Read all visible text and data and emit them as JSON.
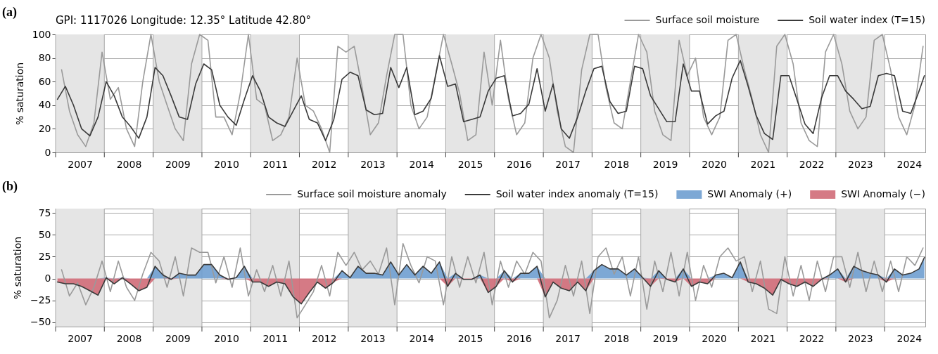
{
  "chart_data": [
    {
      "type": "line",
      "title": "GPI: 1117026 Longitude: 12.35° Latitude 42.80°",
      "ylabel": "% saturation",
      "annotations": [
        "(a)"
      ],
      "x": [
        "2007-01-15",
        "2007-03-15",
        "2007-05-15",
        "2007-07-15",
        "2007-09-15",
        "2007-11-15",
        "2008-01-15",
        "2008-03-15",
        "2008-05-15",
        "2008-07-15",
        "2008-09-15",
        "2008-11-15",
        "2009-01-15",
        "2009-03-15",
        "2009-05-15",
        "2009-07-15",
        "2009-09-15",
        "2009-11-15",
        "2010-01-15",
        "2010-03-15",
        "2010-05-15",
        "2010-07-15",
        "2010-09-15",
        "2010-11-15",
        "2011-01-15",
        "2011-03-15",
        "2011-05-15",
        "2011-07-15",
        "2011-09-15",
        "2011-11-15",
        "2012-01-15",
        "2012-03-15",
        "2012-05-15",
        "2012-07-15",
        "2012-09-15",
        "2012-11-15",
        "2013-01-15",
        "2013-03-15",
        "2013-05-15",
        "2013-07-15",
        "2013-09-15",
        "2013-11-15",
        "2014-01-15",
        "2014-03-15",
        "2014-05-15",
        "2014-07-15",
        "2014-09-15",
        "2014-11-15",
        "2015-01-15",
        "2015-03-15",
        "2015-05-15",
        "2015-07-15",
        "2015-09-15",
        "2015-11-15",
        "2016-01-15",
        "2016-03-15",
        "2016-05-15",
        "2016-07-15",
        "2016-09-15",
        "2016-11-15",
        "2017-01-15",
        "2017-03-15",
        "2017-05-15",
        "2017-07-15",
        "2017-09-15",
        "2017-11-15",
        "2018-01-15",
        "2018-03-15",
        "2018-05-15",
        "2018-07-15",
        "2018-09-15",
        "2018-11-15",
        "2019-01-15",
        "2019-03-15",
        "2019-05-15",
        "2019-07-15",
        "2019-09-15",
        "2019-11-15",
        "2020-01-15",
        "2020-03-15",
        "2020-05-15",
        "2020-07-15",
        "2020-09-15",
        "2020-11-15",
        "2021-01-15",
        "2021-03-15",
        "2021-05-15",
        "2021-07-15",
        "2021-09-15",
        "2021-11-15",
        "2022-01-15",
        "2022-03-15",
        "2022-05-15",
        "2022-07-15",
        "2022-09-15",
        "2022-11-15",
        "2023-01-15",
        "2023-03-15",
        "2023-05-15",
        "2023-07-15",
        "2023-09-15",
        "2023-11-15",
        "2024-01-15",
        "2024-03-15",
        "2024-05-15",
        "2024-07-15",
        "2024-09-15",
        "2024-10-25"
      ],
      "xlim": [
        "2007-01-01",
        "2024-11-01"
      ],
      "ylim": [
        0,
        100
      ],
      "xticks": [
        {
          "value": "2007-01-01",
          "label": null
        },
        {
          "value": "2007-07-02",
          "label": "2007"
        },
        {
          "value": "2008-01-01",
          "label": null
        },
        {
          "value": "2008-07-02",
          "label": "2008"
        },
        {
          "value": "2009-01-01",
          "label": null
        },
        {
          "value": "2009-07-02",
          "label": "2009"
        },
        {
          "value": "2010-01-01",
          "label": null
        },
        {
          "value": "2010-07-02",
          "label": "2010"
        },
        {
          "value": "2011-01-01",
          "label": null
        },
        {
          "value": "2011-07-02",
          "label": "2011"
        },
        {
          "value": "2012-01-01",
          "label": null
        },
        {
          "value": "2012-07-02",
          "label": "2012"
        },
        {
          "value": "2013-01-01",
          "label": null
        },
        {
          "value": "2013-07-02",
          "label": "2013"
        },
        {
          "value": "2014-01-01",
          "label": null
        },
        {
          "value": "2014-07-02",
          "label": "2014"
        },
        {
          "value": "2015-01-01",
          "label": null
        },
        {
          "value": "2015-07-02",
          "label": "2015"
        },
        {
          "value": "2016-01-01",
          "label": null
        },
        {
          "value": "2016-07-02",
          "label": "2016"
        },
        {
          "value": "2017-01-01",
          "label": null
        },
        {
          "value": "2017-07-02",
          "label": "2017"
        },
        {
          "value": "2018-01-01",
          "label": null
        },
        {
          "value": "2018-07-02",
          "label": "2018"
        },
        {
          "value": "2019-01-01",
          "label": null
        },
        {
          "value": "2019-07-02",
          "label": "2019"
        },
        {
          "value": "2020-01-01",
          "label": null
        },
        {
          "value": "2020-07-02",
          "label": "2020"
        },
        {
          "value": "2021-01-01",
          "label": null
        },
        {
          "value": "2021-07-02",
          "label": "2021"
        },
        {
          "value": "2022-01-01",
          "label": null
        },
        {
          "value": "2022-07-02",
          "label": "2022"
        },
        {
          "value": "2023-01-01",
          "label": null
        },
        {
          "value": "2023-07-02",
          "label": "2023"
        },
        {
          "value": "2024-01-01",
          "label": null
        },
        {
          "value": "2024-07-02",
          "label": "2024"
        }
      ],
      "yticks": [
        0,
        20,
        40,
        60,
        80,
        100
      ],
      "grid": true,
      "legend": "top right",
      "bands": [
        {
          "axis": "x",
          "from": "2007-01-01",
          "to": "2008-01-01",
          "color": "#e5e5e5"
        },
        {
          "axis": "x",
          "from": "2009-01-01",
          "to": "2010-01-01",
          "color": "#e5e5e5"
        },
        {
          "axis": "x",
          "from": "2011-01-01",
          "to": "2012-01-01",
          "color": "#e5e5e5"
        },
        {
          "axis": "x",
          "from": "2013-01-01",
          "to": "2014-01-01",
          "color": "#e5e5e5"
        },
        {
          "axis": "x",
          "from": "2015-01-01",
          "to": "2016-01-01",
          "color": "#e5e5e5"
        },
        {
          "axis": "x",
          "from": "2017-01-01",
          "to": "2018-01-01",
          "color": "#e5e5e5"
        },
        {
          "axis": "x",
          "from": "2019-01-01",
          "to": "2020-01-01",
          "color": "#e5e5e5"
        },
        {
          "axis": "x",
          "from": "2021-01-01",
          "to": "2022-01-01",
          "color": "#e5e5e5"
        },
        {
          "axis": "x",
          "from": "2023-01-01",
          "to": "2024-01-01",
          "color": "#e5e5e5"
        }
      ],
      "series": [
        {
          "name": "Surface soil moisture",
          "color": "#9a9a9a",
          "x": [
            "2007-02-15",
            "2007-04-15",
            "2007-06-15",
            "2007-08-15",
            "2007-10-15",
            "2007-12-15",
            "2008-02-15",
            "2008-04-15",
            "2008-06-15",
            "2008-08-15",
            "2008-10-15",
            "2008-12-15",
            "2009-02-15",
            "2009-04-15",
            "2009-06-15",
            "2009-08-15",
            "2009-10-15",
            "2009-12-15",
            "2010-02-15",
            "2010-04-15",
            "2010-06-15",
            "2010-08-15",
            "2010-10-15",
            "2010-12-15",
            "2011-02-15",
            "2011-04-15",
            "2011-06-15",
            "2011-08-15",
            "2011-10-15",
            "2011-12-15",
            "2012-02-15",
            "2012-04-15",
            "2012-06-15",
            "2012-08-15",
            "2012-10-15",
            "2012-12-15",
            "2013-02-15",
            "2013-04-15",
            "2013-06-15",
            "2013-08-15",
            "2013-10-15",
            "2013-12-15",
            "2014-02-15",
            "2014-04-15",
            "2014-06-15",
            "2014-08-15",
            "2014-10-15",
            "2014-12-15",
            "2015-02-15",
            "2015-04-15",
            "2015-06-15",
            "2015-08-15",
            "2015-10-15",
            "2015-12-15",
            "2016-02-15",
            "2016-04-15",
            "2016-06-15",
            "2016-08-15",
            "2016-10-15",
            "2016-12-15",
            "2017-02-15",
            "2017-04-15",
            "2017-06-15",
            "2017-08-15",
            "2017-10-15",
            "2017-12-15",
            "2018-02-15",
            "2018-04-15",
            "2018-06-15",
            "2018-08-15",
            "2018-10-15",
            "2018-12-15",
            "2019-02-15",
            "2019-04-15",
            "2019-06-15",
            "2019-08-15",
            "2019-10-15",
            "2019-12-15",
            "2020-02-15",
            "2020-04-15",
            "2020-06-15",
            "2020-08-15",
            "2020-10-15",
            "2020-12-15",
            "2021-02-15",
            "2021-04-15",
            "2021-06-15",
            "2021-08-15",
            "2021-10-15",
            "2021-12-15",
            "2022-02-15",
            "2022-04-15",
            "2022-06-15",
            "2022-08-15",
            "2022-10-15",
            "2022-12-15",
            "2023-02-15",
            "2023-04-15",
            "2023-06-15",
            "2023-08-15",
            "2023-10-15",
            "2023-12-15",
            "2024-02-15",
            "2024-04-15",
            "2024-06-15",
            "2024-08-15",
            "2024-10-15"
          ],
          "values": [
            70,
            35,
            15,
            5,
            25,
            85,
            45,
            55,
            20,
            5,
            60,
            100,
            60,
            40,
            20,
            10,
            75,
            100,
            95,
            30,
            30,
            15,
            50,
            100,
            45,
            40,
            10,
            15,
            30,
            80,
            40,
            35,
            20,
            0,
            90,
            85,
            90,
            55,
            15,
            25,
            65,
            100,
            100,
            40,
            20,
            30,
            65,
            100,
            75,
            50,
            10,
            15,
            85,
            40,
            95,
            45,
            15,
            25,
            80,
            100,
            80,
            35,
            5,
            0,
            70,
            100,
            100,
            55,
            25,
            20,
            60,
            100,
            85,
            35,
            15,
            10,
            95,
            65,
            80,
            30,
            15,
            30,
            95,
            100,
            70,
            45,
            15,
            0,
            90,
            100,
            75,
            25,
            10,
            5,
            85,
            100,
            75,
            35,
            20,
            30,
            95,
            100,
            70,
            30,
            15,
            40,
            90
          ]
        },
        {
          "name": "Soil water index (T=15)",
          "color": "#3a3a3a",
          "values": [
            45,
            56,
            40,
            20,
            14,
            30,
            60,
            48,
            30,
            22,
            12,
            30,
            72,
            65,
            48,
            30,
            28,
            58,
            75,
            70,
            40,
            30,
            23,
            45,
            65,
            52,
            30,
            25,
            22,
            35,
            48,
            28,
            25,
            10,
            28,
            62,
            68,
            65,
            36,
            32,
            33,
            72,
            55,
            72,
            32,
            35,
            46,
            82,
            56,
            58,
            26,
            28,
            30,
            52,
            63,
            65,
            31,
            33,
            41,
            71,
            35,
            58,
            20,
            12,
            30,
            52,
            71,
            73,
            43,
            33,
            35,
            73,
            71,
            48,
            37,
            26,
            26,
            75,
            52,
            52,
            24,
            31,
            35,
            63,
            78,
            56,
            31,
            16,
            11,
            65,
            65,
            45,
            24,
            16,
            46,
            65,
            65,
            52,
            45,
            37,
            39,
            65,
            67,
            65,
            35,
            33,
            52,
            65
          ]
        }
      ]
    },
    {
      "type": "line",
      "ylabel": "% saturation",
      "annotations": [
        "(b)"
      ],
      "x": [
        "2007-01-15",
        "2007-03-15",
        "2007-05-15",
        "2007-07-15",
        "2007-09-15",
        "2007-11-15",
        "2008-01-15",
        "2008-03-15",
        "2008-05-15",
        "2008-07-15",
        "2008-09-15",
        "2008-11-15",
        "2009-01-15",
        "2009-03-15",
        "2009-05-15",
        "2009-07-15",
        "2009-09-15",
        "2009-11-15",
        "2010-01-15",
        "2010-03-15",
        "2010-05-15",
        "2010-07-15",
        "2010-09-15",
        "2010-11-15",
        "2011-01-15",
        "2011-03-15",
        "2011-05-15",
        "2011-07-15",
        "2011-09-15",
        "2011-11-15",
        "2012-01-15",
        "2012-03-15",
        "2012-05-15",
        "2012-07-15",
        "2012-09-15",
        "2012-11-15",
        "2013-01-15",
        "2013-03-15",
        "2013-05-15",
        "2013-07-15",
        "2013-09-15",
        "2013-11-15",
        "2014-01-15",
        "2014-03-15",
        "2014-05-15",
        "2014-07-15",
        "2014-09-15",
        "2014-11-15",
        "2015-01-15",
        "2015-03-15",
        "2015-05-15",
        "2015-07-15",
        "2015-09-15",
        "2015-11-15",
        "2016-01-15",
        "2016-03-15",
        "2016-05-15",
        "2016-07-15",
        "2016-09-15",
        "2016-11-15",
        "2017-01-15",
        "2017-03-15",
        "2017-05-15",
        "2017-07-15",
        "2017-09-15",
        "2017-11-15",
        "2018-01-15",
        "2018-03-15",
        "2018-05-15",
        "2018-07-15",
        "2018-09-15",
        "2018-11-15",
        "2019-01-15",
        "2019-03-15",
        "2019-05-15",
        "2019-07-15",
        "2019-09-15",
        "2019-11-15",
        "2020-01-15",
        "2020-03-15",
        "2020-05-15",
        "2020-07-15",
        "2020-09-15",
        "2020-11-15",
        "2021-01-15",
        "2021-03-15",
        "2021-05-15",
        "2021-07-15",
        "2021-09-15",
        "2021-11-15",
        "2022-01-15",
        "2022-03-15",
        "2022-05-15",
        "2022-07-15",
        "2022-09-15",
        "2022-11-15",
        "2023-01-15",
        "2023-03-15",
        "2023-05-15",
        "2023-07-15",
        "2023-09-15",
        "2023-11-15",
        "2024-01-15",
        "2024-03-15",
        "2024-05-15",
        "2024-07-15",
        "2024-09-15",
        "2024-10-25"
      ],
      "xlim": [
        "2007-01-01",
        "2024-11-01"
      ],
      "ylim": [
        -55,
        80
      ],
      "xticks": [
        {
          "value": "2007-01-01",
          "label": null
        },
        {
          "value": "2007-07-02",
          "label": "2007"
        },
        {
          "value": "2008-01-01",
          "label": null
        },
        {
          "value": "2008-07-02",
          "label": "2008"
        },
        {
          "value": "2009-01-01",
          "label": null
        },
        {
          "value": "2009-07-02",
          "label": "2009"
        },
        {
          "value": "2010-01-01",
          "label": null
        },
        {
          "value": "2010-07-02",
          "label": "2010"
        },
        {
          "value": "2011-01-01",
          "label": null
        },
        {
          "value": "2011-07-02",
          "label": "2011"
        },
        {
          "value": "2012-01-01",
          "label": null
        },
        {
          "value": "2012-07-02",
          "label": "2012"
        },
        {
          "value": "2013-01-01",
          "label": null
        },
        {
          "value": "2013-07-02",
          "label": "2013"
        },
        {
          "value": "2014-01-01",
          "label": null
        },
        {
          "value": "2014-07-02",
          "label": "2014"
        },
        {
          "value": "2015-01-01",
          "label": null
        },
        {
          "value": "2015-07-02",
          "label": "2015"
        },
        {
          "value": "2016-01-01",
          "label": null
        },
        {
          "value": "2016-07-02",
          "label": "2016"
        },
        {
          "value": "2017-01-01",
          "label": null
        },
        {
          "value": "2017-07-02",
          "label": "2017"
        },
        {
          "value": "2018-01-01",
          "label": null
        },
        {
          "value": "2018-07-02",
          "label": "2018"
        },
        {
          "value": "2019-01-01",
          "label": null
        },
        {
          "value": "2019-07-02",
          "label": "2019"
        },
        {
          "value": "2020-01-01",
          "label": null
        },
        {
          "value": "2020-07-02",
          "label": "2020"
        },
        {
          "value": "2021-01-01",
          "label": null
        },
        {
          "value": "2021-07-02",
          "label": "2021"
        },
        {
          "value": "2022-01-01",
          "label": null
        },
        {
          "value": "2022-07-02",
          "label": "2022"
        },
        {
          "value": "2023-01-01",
          "label": null
        },
        {
          "value": "2023-07-02",
          "label": "2023"
        },
        {
          "value": "2024-01-01",
          "label": null
        },
        {
          "value": "2024-07-02",
          "label": "2024"
        }
      ],
      "yticks": [
        -50,
        -25,
        0,
        25,
        50,
        75
      ],
      "grid": true,
      "legend": "top right",
      "bands": [
        {
          "axis": "x",
          "from": "2007-01-01",
          "to": "2008-01-01",
          "color": "#e5e5e5"
        },
        {
          "axis": "x",
          "from": "2009-01-01",
          "to": "2010-01-01",
          "color": "#e5e5e5"
        },
        {
          "axis": "x",
          "from": "2011-01-01",
          "to": "2012-01-01",
          "color": "#e5e5e5"
        },
        {
          "axis": "x",
          "from": "2013-01-01",
          "to": "2014-01-01",
          "color": "#e5e5e5"
        },
        {
          "axis": "x",
          "from": "2015-01-01",
          "to": "2016-01-01",
          "color": "#e5e5e5"
        },
        {
          "axis": "x",
          "from": "2017-01-01",
          "to": "2018-01-01",
          "color": "#e5e5e5"
        },
        {
          "axis": "x",
          "from": "2019-01-01",
          "to": "2020-01-01",
          "color": "#e5e5e5"
        },
        {
          "axis": "x",
          "from": "2021-01-01",
          "to": "2022-01-01",
          "color": "#e5e5e5"
        },
        {
          "axis": "x",
          "from": "2023-01-01",
          "to": "2024-01-01",
          "color": "#e5e5e5"
        }
      ],
      "series": [
        {
          "name": "Surface soil moisture anomaly",
          "color": "#9a9a9a",
          "x": [
            "2007-02-15",
            "2007-04-15",
            "2007-06-15",
            "2007-08-15",
            "2007-10-15",
            "2007-12-15",
            "2008-02-15",
            "2008-04-15",
            "2008-06-15",
            "2008-08-15",
            "2008-10-15",
            "2008-12-15",
            "2009-02-15",
            "2009-04-15",
            "2009-06-15",
            "2009-08-15",
            "2009-10-15",
            "2009-12-15",
            "2010-02-15",
            "2010-04-15",
            "2010-06-15",
            "2010-08-15",
            "2010-10-15",
            "2010-12-15",
            "2011-02-15",
            "2011-04-15",
            "2011-06-15",
            "2011-08-15",
            "2011-10-15",
            "2011-12-15",
            "2012-02-15",
            "2012-04-15",
            "2012-06-15",
            "2012-08-15",
            "2012-10-15",
            "2012-12-15",
            "2013-02-15",
            "2013-04-15",
            "2013-06-15",
            "2013-08-15",
            "2013-10-15",
            "2013-12-15",
            "2014-02-15",
            "2014-04-15",
            "2014-06-15",
            "2014-08-15",
            "2014-10-15",
            "2014-12-15",
            "2015-02-15",
            "2015-04-15",
            "2015-06-15",
            "2015-08-15",
            "2015-10-15",
            "2015-12-15",
            "2016-02-15",
            "2016-04-15",
            "2016-06-15",
            "2016-08-15",
            "2016-10-15",
            "2016-12-15",
            "2017-02-15",
            "2017-04-15",
            "2017-06-15",
            "2017-08-15",
            "2017-10-15",
            "2017-12-15",
            "2018-02-15",
            "2018-04-15",
            "2018-06-15",
            "2018-08-15",
            "2018-10-15",
            "2018-12-15",
            "2019-02-15",
            "2019-04-15",
            "2019-06-15",
            "2019-08-15",
            "2019-10-15",
            "2019-12-15",
            "2020-02-15",
            "2020-04-15",
            "2020-06-15",
            "2020-08-15",
            "2020-10-15",
            "2020-12-15",
            "2021-02-15",
            "2021-04-15",
            "2021-06-15",
            "2021-08-15",
            "2021-10-15",
            "2021-12-15",
            "2022-02-15",
            "2022-04-15",
            "2022-06-15",
            "2022-08-15",
            "2022-10-15",
            "2022-12-15",
            "2023-02-15",
            "2023-04-15",
            "2023-06-15",
            "2023-08-15",
            "2023-10-15",
            "2023-12-15",
            "2024-02-15",
            "2024-04-15",
            "2024-06-15",
            "2024-08-15",
            "2024-10-15"
          ],
          "values": [
            10,
            -20,
            -5,
            -30,
            -10,
            20,
            -15,
            20,
            -10,
            -25,
            5,
            30,
            20,
            -10,
            25,
            -20,
            35,
            30,
            30,
            -5,
            25,
            -10,
            35,
            -20,
            10,
            -15,
            15,
            -20,
            20,
            -45,
            -30,
            -15,
            15,
            -20,
            30,
            15,
            30,
            10,
            20,
            5,
            35,
            -30,
            40,
            15,
            -5,
            25,
            20,
            -30,
            25,
            -10,
            25,
            -5,
            30,
            -30,
            20,
            -10,
            20,
            5,
            30,
            20,
            -45,
            -25,
            15,
            -20,
            20,
            -40,
            25,
            35,
            5,
            25,
            -20,
            25,
            -35,
            20,
            -15,
            30,
            -20,
            30,
            -25,
            15,
            -10,
            25,
            35,
            20,
            25,
            -15,
            20,
            -35,
            -40,
            25,
            -20,
            15,
            -25,
            20,
            -15,
            25,
            25,
            -10,
            30,
            -15,
            20,
            -15,
            20,
            -15,
            25,
            15,
            35
          ]
        },
        {
          "name": "Soil water index anomaly (T=15)",
          "color": "#3a3a3a",
          "values": [
            -4,
            -6,
            -6,
            -9,
            -14,
            -19,
            1,
            -6,
            1,
            -6,
            -14,
            -10,
            14,
            4,
            -1,
            6,
            4,
            4,
            16,
            16,
            4,
            -1,
            1,
            14,
            -4,
            -4,
            -9,
            -4,
            -6,
            -21,
            -29,
            -16,
            -4,
            -11,
            -4,
            9,
            1,
            14,
            6,
            6,
            4,
            19,
            4,
            16,
            4,
            14,
            6,
            19,
            -9,
            6,
            -1,
            -1,
            4,
            -16,
            -9,
            9,
            -4,
            6,
            6,
            14,
            -21,
            -4,
            -11,
            -14,
            -4,
            -14,
            9,
            16,
            11,
            11,
            4,
            11,
            1,
            -9,
            9,
            -1,
            -4,
            11,
            -9,
            -4,
            -6,
            4,
            6,
            1,
            19,
            -4,
            -6,
            -11,
            -19,
            -1,
            -6,
            -9,
            -4,
            -9,
            -1,
            4,
            11,
            -4,
            14,
            9,
            6,
            4,
            -4,
            11,
            4,
            6,
            11,
            24
          ]
        },
        {
          "name": "SWI Anomaly (+)",
          "type": "area",
          "color": "#6f9fd0",
          "values": [
            0,
            0,
            0,
            0,
            0,
            0,
            1,
            0,
            1,
            0,
            0,
            0,
            14,
            4,
            0,
            6,
            4,
            4,
            16,
            16,
            4,
            0,
            1,
            14,
            0,
            0,
            0,
            0,
            0,
            0,
            0,
            0,
            0,
            0,
            0,
            9,
            1,
            14,
            6,
            6,
            4,
            19,
            4,
            16,
            4,
            14,
            6,
            19,
            0,
            6,
            0,
            0,
            4,
            0,
            0,
            9,
            0,
            6,
            6,
            14,
            0,
            0,
            0,
            0,
            0,
            0,
            9,
            16,
            11,
            11,
            4,
            11,
            1,
            0,
            9,
            0,
            0,
            11,
            0,
            0,
            0,
            4,
            6,
            1,
            19,
            0,
            0,
            0,
            0,
            0,
            0,
            0,
            0,
            0,
            0,
            4,
            11,
            0,
            14,
            9,
            6,
            4,
            0,
            11,
            4,
            6,
            11,
            24
          ]
        },
        {
          "name": "SWI Anomaly (−)",
          "type": "area",
          "color": "#d06b78",
          "values": [
            -4,
            -6,
            -6,
            -9,
            -14,
            -19,
            0,
            -6,
            0,
            -6,
            -14,
            -10,
            0,
            0,
            -1,
            0,
            0,
            0,
            0,
            0,
            0,
            -1,
            0,
            0,
            -4,
            -4,
            -9,
            -4,
            -6,
            -21,
            -29,
            -16,
            -4,
            -11,
            -4,
            0,
            0,
            0,
            0,
            0,
            0,
            0,
            0,
            0,
            0,
            0,
            0,
            0,
            -9,
            0,
            -1,
            -1,
            0,
            -16,
            -9,
            0,
            -4,
            0,
            0,
            0,
            -21,
            -4,
            -11,
            -14,
            -4,
            -14,
            0,
            0,
            0,
            0,
            0,
            0,
            0,
            -9,
            0,
            -1,
            -4,
            0,
            -9,
            -4,
            -6,
            0,
            0,
            0,
            0,
            -4,
            -6,
            -11,
            -19,
            -1,
            -6,
            -9,
            -4,
            -9,
            -1,
            0,
            0,
            -4,
            0,
            0,
            0,
            0,
            -4,
            0,
            0,
            0,
            0,
            0
          ]
        }
      ]
    }
  ]
}
